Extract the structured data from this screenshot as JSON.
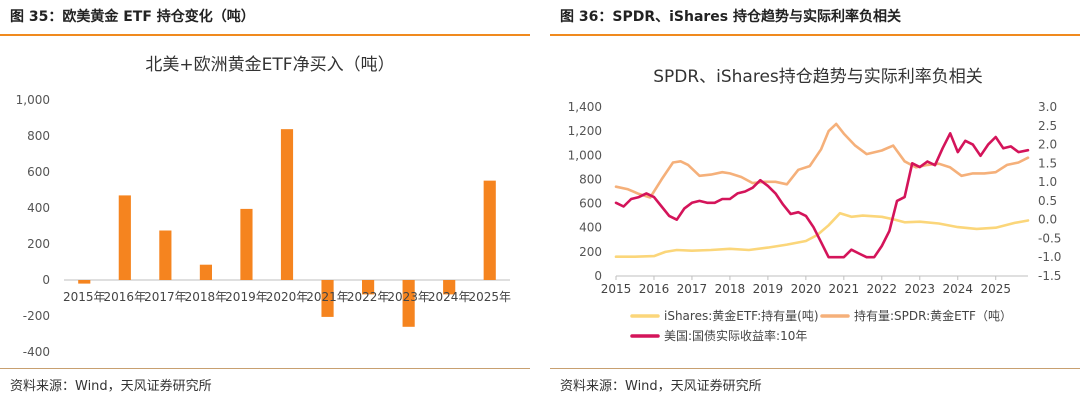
{
  "left": {
    "header": "图 35：欧美黄金 ETF 持仓变化（吨）",
    "source": "资料来源：Wind，天风证券研究所"
  },
  "right": {
    "header": "图 36：SPDR、iShares 持仓趋势与实际利率负相关",
    "source": "资料来源：Wind，天风证券研究所"
  },
  "colors": {
    "accent": "#f08a1e",
    "bar": "#f5841f",
    "ishares": "#fbd67a",
    "spdr": "#f5b07a",
    "rate": "#d4145a"
  },
  "chart_data": [
    {
      "type": "bar",
      "title": "北美+欧洲黄金ETF净买入（吨）",
      "categories": [
        "2015年",
        "2016年",
        "2017年",
        "2018年",
        "2019年",
        "2020年",
        "2021年",
        "2022年",
        "2023年",
        "2024年",
        "2025年"
      ],
      "values": [
        -20,
        470,
        275,
        85,
        395,
        838,
        -205,
        -80,
        -260,
        -80,
        552
      ],
      "ylim": [
        -400,
        1000
      ],
      "yticks": [
        "-400",
        "-200",
        "0",
        "200",
        "400",
        "600",
        "800",
        "1,000"
      ],
      "grid": false,
      "legend": "none"
    },
    {
      "type": "line",
      "title": "SPDR、iShares持仓趋势与实际利率负相关",
      "x_ticks": [
        "2015",
        "2016",
        "2017",
        "2018",
        "2019",
        "2020",
        "2021",
        "2022",
        "2023",
        "2024",
        "2025"
      ],
      "x_range": [
        2015.0,
        2025.85
      ],
      "ylim_left": [
        0,
        1400
      ],
      "yticks_left": [
        "0",
        "200",
        "400",
        "600",
        "800",
        "1,000",
        "1,200",
        "1,400"
      ],
      "ylim_right": [
        -1.5,
        3.0
      ],
      "yticks_right": [
        "-1.5",
        "-1.0",
        "-0.5",
        "0.0",
        "0.5",
        "1.0",
        "1.5",
        "2.0",
        "2.5",
        "3.0"
      ],
      "legend_position": "bottom",
      "series": [
        {
          "name": "iShares:黄金ETF:持有量(吨)",
          "axis": "left",
          "x": [
            2015.0,
            2015.5,
            2016.0,
            2016.3,
            2016.6,
            2017.0,
            2017.5,
            2018.0,
            2018.5,
            2019.0,
            2019.5,
            2020.0,
            2020.3,
            2020.6,
            2020.9,
            2021.2,
            2021.5,
            2022.0,
            2022.3,
            2022.6,
            2023.0,
            2023.5,
            2024.0,
            2024.5,
            2025.0,
            2025.5,
            2025.85
          ],
          "y": [
            160,
            160,
            165,
            200,
            215,
            210,
            215,
            225,
            215,
            235,
            260,
            290,
            340,
            420,
            520,
            490,
            500,
            490,
            470,
            445,
            450,
            435,
            405,
            390,
            400,
            440,
            460
          ]
        },
        {
          "name": "持有量:SPDR:黄金ETF（吨）",
          "axis": "left",
          "x": [
            2015.0,
            2015.3,
            2015.6,
            2015.9,
            2016.2,
            2016.5,
            2016.7,
            2016.9,
            2017.2,
            2017.5,
            2017.8,
            2018.0,
            2018.3,
            2018.6,
            2018.9,
            2019.2,
            2019.5,
            2019.8,
            2020.1,
            2020.4,
            2020.6,
            2020.8,
            2021.0,
            2021.3,
            2021.6,
            2022.0,
            2022.3,
            2022.6,
            2022.9,
            2023.2,
            2023.5,
            2023.8,
            2024.1,
            2024.4,
            2024.7,
            2025.0,
            2025.3,
            2025.6,
            2025.85
          ],
          "y": [
            740,
            720,
            680,
            650,
            800,
            940,
            950,
            920,
            830,
            840,
            860,
            850,
            820,
            770,
            780,
            780,
            760,
            880,
            910,
            1050,
            1200,
            1260,
            1180,
            1080,
            1010,
            1040,
            1080,
            950,
            900,
            920,
            930,
            900,
            830,
            850,
            850,
            860,
            920,
            940,
            980
          ]
        },
        {
          "name": "美国:国债实际收益率:10年",
          "axis": "right",
          "x": [
            2015.0,
            2015.2,
            2015.4,
            2015.6,
            2015.8,
            2016.0,
            2016.2,
            2016.4,
            2016.6,
            2016.8,
            2017.0,
            2017.2,
            2017.4,
            2017.6,
            2017.8,
            2018.0,
            2018.2,
            2018.4,
            2018.6,
            2018.8,
            2019.0,
            2019.2,
            2019.4,
            2019.6,
            2019.8,
            2020.0,
            2020.2,
            2020.4,
            2020.6,
            2020.8,
            2021.0,
            2021.2,
            2021.4,
            2021.6,
            2021.8,
            2022.0,
            2022.2,
            2022.4,
            2022.6,
            2022.8,
            2023.0,
            2023.2,
            2023.4,
            2023.6,
            2023.8,
            2024.0,
            2024.2,
            2024.4,
            2024.6,
            2024.8,
            2025.0,
            2025.2,
            2025.4,
            2025.6,
            2025.85
          ],
          "y": [
            0.45,
            0.35,
            0.55,
            0.6,
            0.7,
            0.6,
            0.35,
            0.1,
            0.0,
            0.3,
            0.45,
            0.5,
            0.45,
            0.45,
            0.55,
            0.55,
            0.7,
            0.75,
            0.85,
            1.05,
            0.9,
            0.7,
            0.4,
            0.15,
            0.2,
            0.1,
            -0.2,
            -0.6,
            -1.0,
            -1.0,
            -1.0,
            -0.8,
            -0.9,
            -1.0,
            -1.0,
            -0.7,
            -0.3,
            0.5,
            0.6,
            1.5,
            1.4,
            1.55,
            1.45,
            1.9,
            2.3,
            1.8,
            2.1,
            2.0,
            1.7,
            2.0,
            2.2,
            1.9,
            1.95,
            1.8,
            1.85
          ]
        }
      ]
    }
  ]
}
